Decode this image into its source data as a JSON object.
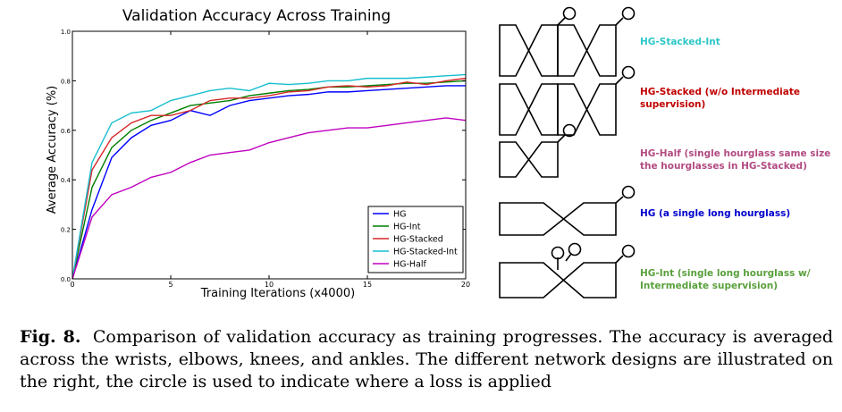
{
  "chart_data": {
    "type": "line",
    "title": "Validation Accuracy Across Training",
    "xlabel": "Training Iterations (x4000)",
    "ylabel": "Average Accuracy (%)",
    "xlim": [
      0,
      20
    ],
    "ylim": [
      0.0,
      1.0
    ],
    "x_ticks": [
      "0",
      "5",
      "10",
      "15",
      "20"
    ],
    "y_ticks": [
      "0.0",
      "0.2",
      "0.4",
      "0.6",
      "0.8",
      "1.0"
    ],
    "grid": false,
    "legend_position": "lower-right",
    "x": [
      0,
      1,
      2,
      3,
      4,
      5,
      6,
      7,
      8,
      9,
      10,
      11,
      12,
      13,
      14,
      15,
      16,
      17,
      18,
      19,
      20
    ],
    "series": [
      {
        "name": "HG",
        "color": "#0000ff",
        "values": [
          0.0,
          0.28,
          0.49,
          0.57,
          0.62,
          0.64,
          0.68,
          0.66,
          0.7,
          0.72,
          0.73,
          0.74,
          0.745,
          0.755,
          0.755,
          0.76,
          0.765,
          0.77,
          0.775,
          0.78,
          0.78
        ]
      },
      {
        "name": "HG-Int",
        "color": "#007f00",
        "values": [
          0.0,
          0.37,
          0.53,
          0.6,
          0.64,
          0.67,
          0.7,
          0.71,
          0.72,
          0.74,
          0.75,
          0.76,
          0.765,
          0.775,
          0.775,
          0.78,
          0.785,
          0.79,
          0.79,
          0.795,
          0.8
        ]
      },
      {
        "name": "HG-Stacked",
        "color": "#d62728",
        "values": [
          0.0,
          0.44,
          0.57,
          0.63,
          0.66,
          0.66,
          0.68,
          0.72,
          0.73,
          0.73,
          0.74,
          0.755,
          0.76,
          0.775,
          0.78,
          0.775,
          0.78,
          0.795,
          0.785,
          0.8,
          0.81
        ]
      },
      {
        "name": "HG-Stacked-Int",
        "color": "#17becf",
        "values": [
          0.0,
          0.47,
          0.63,
          0.67,
          0.68,
          0.72,
          0.74,
          0.76,
          0.77,
          0.76,
          0.79,
          0.785,
          0.79,
          0.8,
          0.8,
          0.81,
          0.81,
          0.81,
          0.815,
          0.82,
          0.825
        ]
      },
      {
        "name": "HG-Half",
        "color": "#bf00bf",
        "values": [
          0.0,
          0.25,
          0.34,
          0.37,
          0.41,
          0.43,
          0.47,
          0.5,
          0.51,
          0.52,
          0.55,
          0.57,
          0.59,
          0.6,
          0.61,
          0.61,
          0.62,
          0.63,
          0.64,
          0.65,
          0.64
        ]
      }
    ]
  },
  "designs": [
    {
      "label": "HG-Stacked-Int",
      "color": "#2dc7c7",
      "shape": "two-hourglasses",
      "loss_points": 2
    },
    {
      "label": "HG-Stacked (w/o Intermediate supervision)",
      "color": "#c00000",
      "shape": "two-hourglasses",
      "loss_points": 1
    },
    {
      "label": "HG-Half (single hourglass same size the hourglasses in HG-Stacked)",
      "color": "#b24b82",
      "shape": "half-hourglass",
      "loss_points": 1
    },
    {
      "label": "HG (a single long hourglass)",
      "color": "#0000cc",
      "shape": "long-hourglass",
      "loss_points": 1
    },
    {
      "label": "HG-Int (single long hourglass w/ Intermediate supervision)",
      "color": "#5aa03c",
      "shape": "long-hourglass",
      "loss_points": 3
    }
  ],
  "caption": {
    "label": "Fig. 8.",
    "text": "Comparison of validation accuracy as training progresses. The accuracy is averaged across the wrists, elbows, knees, and ankles. The different network designs are illustrated on the right, the circle is used to indicate where a loss is applied"
  }
}
